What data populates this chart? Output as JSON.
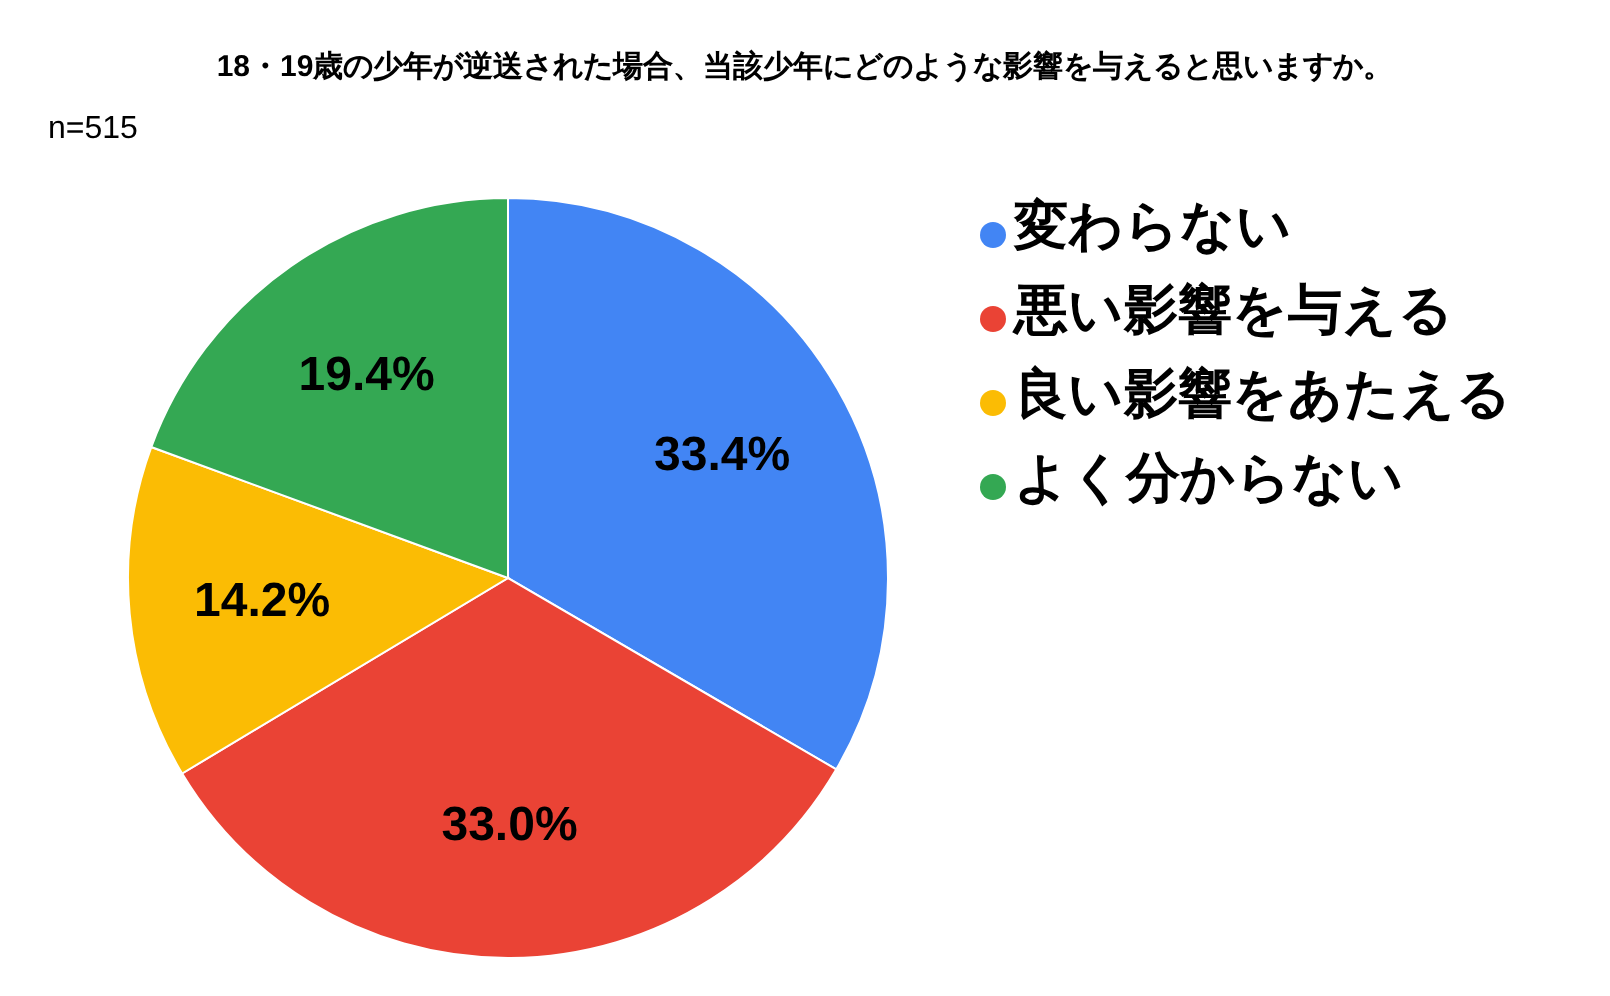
{
  "chart_data": {
    "type": "pie",
    "title": "18・19歳の少年が逆送された場合、当該少年にどのような影響を与えると思いますか。",
    "annotations": [
      "n=515"
    ],
    "categories": [
      "変わらない",
      "悪い影響を与える",
      "良い影響をあたえる",
      "よく分からない"
    ],
    "values": [
      33.4,
      33.0,
      14.2,
      19.4
    ],
    "colors": [
      "#4285f4",
      "#ea4335",
      "#fbbc04",
      "#34a853"
    ],
    "value_labels": [
      "33.4%",
      "33.0%",
      "14.2%",
      "19.4%"
    ],
    "legend": "right"
  }
}
